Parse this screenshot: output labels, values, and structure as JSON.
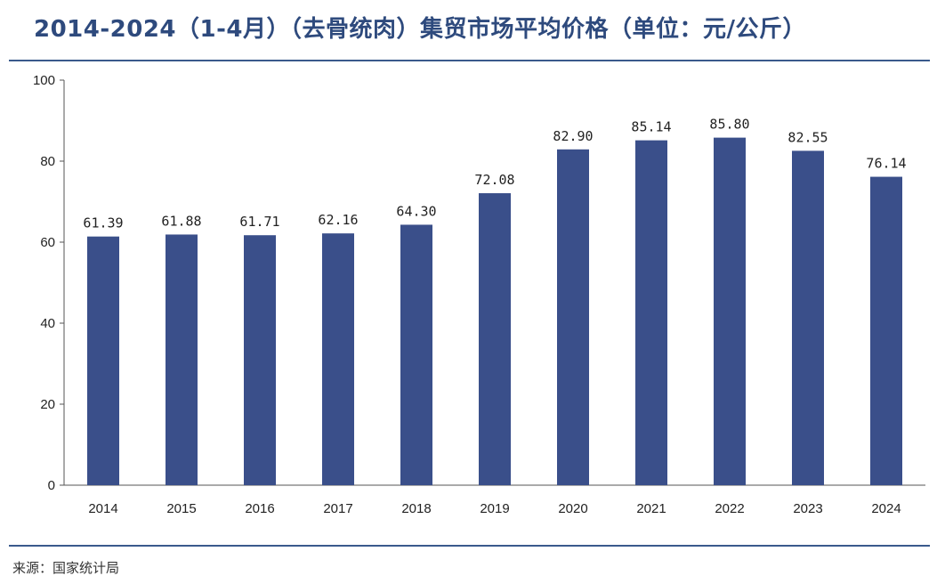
{
  "title": "2014-2024（1-4月）（去骨统肉）集贸市场平均价格（单位：元/公斤）",
  "source": "来源：国家统计局",
  "chart_data": {
    "type": "bar",
    "title": "2014-2024（1-4月）（去骨统肉）集贸市场平均价格（单位：元/公斤）",
    "categories": [
      "2014",
      "2015",
      "2016",
      "2017",
      "2018",
      "2019",
      "2020",
      "2021",
      "2022",
      "2023",
      "2024"
    ],
    "values": [
      61.39,
      61.88,
      61.71,
      62.16,
      64.3,
      72.08,
      82.9,
      85.14,
      85.8,
      82.55,
      76.14
    ],
    "data_labels": [
      "61.39",
      "61.88",
      "61.71",
      "62.16",
      "64.30",
      "72.08",
      "82.90",
      "85.14",
      "85.80",
      "82.55",
      "76.14"
    ],
    "yticks": [
      "0",
      "20",
      "40",
      "60",
      "80",
      "100"
    ],
    "ylim": [
      0,
      100
    ],
    "bar_color": "#3a4f8a",
    "grid": false,
    "legend": "none"
  }
}
